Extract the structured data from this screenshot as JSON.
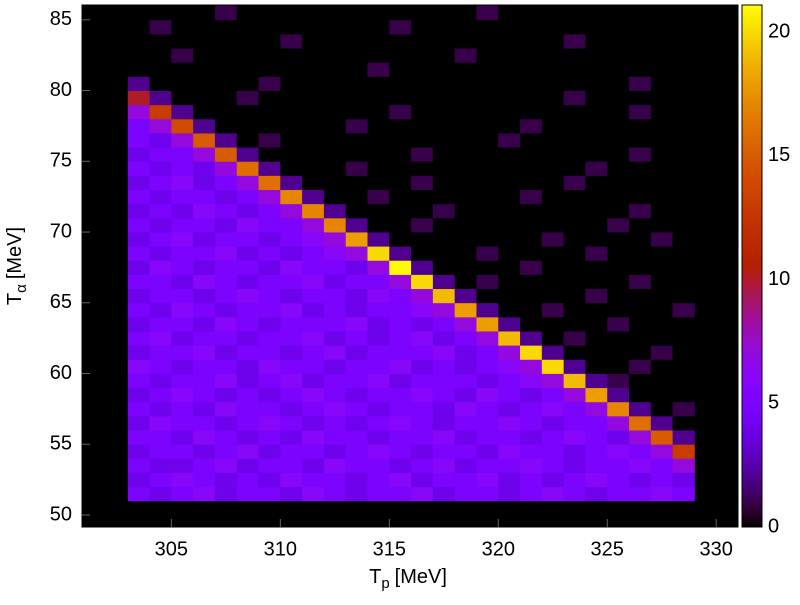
{
  "chart_data": {
    "type": "heatmap",
    "colormap": "gnuplot",
    "xlabel": {
      "symbol": "T",
      "subscript": "p",
      "unit": "[MeV]"
    },
    "ylabel": {
      "symbol": "T",
      "subscript": "α",
      "unit": "[MeV]"
    },
    "xlim": [
      300.9,
      331.0
    ],
    "ylim": [
      49.15,
      86.05
    ],
    "zlim": [
      0,
      21.1
    ],
    "xticks": [
      305,
      310,
      315,
      320,
      325,
      330
    ],
    "yticks": [
      50,
      55,
      60,
      65,
      70,
      75,
      80,
      85
    ],
    "zticks": [
      0,
      5,
      10,
      15,
      20
    ],
    "x_bins": [
      303,
      304,
      305,
      306,
      307,
      308,
      309,
      310,
      311,
      312,
      313,
      314,
      315,
      316,
      317,
      318,
      319,
      320,
      321,
      322,
      323,
      324,
      325,
      326,
      327,
      328,
      329
    ],
    "y_bins": [
      51,
      52,
      53,
      54,
      55,
      56,
      57,
      58,
      59,
      60,
      61,
      62,
      63,
      64,
      65,
      66,
      67,
      68,
      69,
      70,
      71,
      72,
      73,
      74,
      75,
      76,
      77,
      78,
      79,
      80,
      81,
      82,
      83,
      84,
      85,
      86
    ],
    "z": [
      [
        5,
        4,
        5,
        6,
        4,
        5,
        5,
        4,
        6,
        5,
        4,
        5,
        5,
        6,
        4,
        5,
        5,
        4,
        5,
        6,
        5,
        4,
        5,
        5,
        6,
        5
      ],
      [
        4,
        5,
        6,
        5,
        4,
        5,
        4,
        6,
        5,
        5,
        4,
        5,
        6,
        4,
        5,
        5,
        6,
        4,
        5,
        4,
        5,
        6,
        5,
        4,
        5,
        4
      ],
      [
        5,
        4,
        4,
        5,
        6,
        4,
        5,
        5,
        4,
        6,
        5,
        5,
        4,
        5,
        6,
        4,
        5,
        5,
        6,
        5,
        4,
        5,
        5,
        6,
        5,
        7
      ],
      [
        4,
        5,
        5,
        4,
        5,
        6,
        4,
        5,
        5,
        4,
        5,
        6,
        5,
        4,
        5,
        5,
        4,
        6,
        5,
        5,
        4,
        5,
        6,
        5,
        7,
        13
      ],
      [
        5,
        5,
        4,
        6,
        5,
        4,
        5,
        4,
        6,
        5,
        5,
        4,
        5,
        5,
        6,
        4,
        5,
        5,
        4,
        5,
        6,
        5,
        4,
        7,
        15,
        2
      ],
      [
        4,
        6,
        5,
        5,
        4,
        5,
        6,
        5,
        4,
        5,
        4,
        5,
        6,
        5,
        4,
        5,
        5,
        6,
        5,
        4,
        5,
        5,
        7,
        16,
        2,
        0
      ],
      [
        5,
        4,
        5,
        4,
        6,
        5,
        5,
        4,
        5,
        6,
        5,
        4,
        5,
        5,
        4,
        6,
        5,
        4,
        5,
        6,
        5,
        7,
        17,
        2,
        0,
        1
      ],
      [
        4,
        5,
        6,
        5,
        4,
        5,
        4,
        5,
        6,
        5,
        4,
        5,
        5,
        6,
        5,
        4,
        6,
        5,
        4,
        5,
        7,
        18,
        2,
        0,
        0,
        0
      ],
      [
        5,
        4,
        5,
        5,
        6,
        4,
        5,
        6,
        4,
        5,
        5,
        6,
        4,
        5,
        5,
        5,
        4,
        5,
        6,
        7,
        19,
        2,
        1,
        0,
        0,
        0
      ],
      [
        6,
        5,
        4,
        5,
        5,
        4,
        6,
        5,
        5,
        4,
        5,
        5,
        6,
        4,
        5,
        4,
        5,
        6,
        7,
        20,
        2,
        0,
        0,
        1,
        0,
        0
      ],
      [
        4,
        5,
        5,
        6,
        4,
        5,
        5,
        4,
        5,
        6,
        4,
        5,
        5,
        5,
        6,
        4,
        5,
        7,
        20,
        2,
        0,
        0,
        0,
        0,
        1,
        0
      ],
      [
        5,
        6,
        4,
        5,
        5,
        4,
        5,
        5,
        6,
        4,
        5,
        4,
        5,
        6,
        4,
        5,
        7,
        19,
        2,
        0,
        1,
        0,
        0,
        0,
        0,
        0
      ],
      [
        4,
        5,
        5,
        4,
        6,
        5,
        4,
        5,
        5,
        5,
        6,
        4,
        5,
        4,
        5,
        7,
        18,
        2,
        0,
        0,
        0,
        0,
        1,
        0,
        0,
        0
      ],
      [
        5,
        4,
        6,
        5,
        4,
        5,
        5,
        6,
        4,
        5,
        4,
        5,
        5,
        6,
        7,
        18,
        2,
        0,
        0,
        1,
        0,
        0,
        0,
        0,
        0,
        1
      ],
      [
        4,
        5,
        5,
        4,
        5,
        6,
        5,
        4,
        5,
        5,
        4,
        6,
        5,
        7,
        19,
        2,
        0,
        0,
        0,
        0,
        0,
        1,
        0,
        0,
        0,
        0
      ],
      [
        5,
        5,
        4,
        6,
        5,
        4,
        5,
        5,
        6,
        4,
        5,
        5,
        7,
        20,
        2,
        0,
        1,
        0,
        0,
        0,
        0,
        0,
        0,
        1,
        0,
        0
      ],
      [
        4,
        6,
        5,
        4,
        5,
        5,
        4,
        6,
        5,
        5,
        4,
        7,
        21,
        2,
        0,
        0,
        0,
        0,
        1,
        0,
        0,
        0,
        0,
        0,
        0,
        0
      ],
      [
        5,
        4,
        5,
        5,
        6,
        4,
        5,
        4,
        5,
        6,
        7,
        20,
        2,
        0,
        0,
        0,
        1,
        0,
        0,
        0,
        0,
        1,
        0,
        0,
        0,
        0
      ],
      [
        4,
        5,
        6,
        4,
        5,
        5,
        4,
        5,
        6,
        7,
        18,
        2,
        0,
        0,
        0,
        0,
        0,
        0,
        0,
        1,
        0,
        0,
        0,
        0,
        1,
        0
      ],
      [
        5,
        4,
        5,
        5,
        4,
        6,
        5,
        5,
        7,
        17,
        2,
        0,
        0,
        1,
        0,
        0,
        0,
        0,
        0,
        0,
        0,
        0,
        1,
        0,
        0,
        0
      ],
      [
        4,
        5,
        4,
        6,
        5,
        4,
        5,
        7,
        17,
        2,
        0,
        0,
        0,
        0,
        1,
        0,
        0,
        0,
        0,
        0,
        0,
        0,
        0,
        1,
        0,
        0
      ],
      [
        5,
        4,
        5,
        5,
        4,
        5,
        7,
        17,
        2,
        0,
        0,
        1,
        0,
        0,
        0,
        0,
        0,
        0,
        1,
        0,
        0,
        0,
        0,
        0,
        0,
        0
      ],
      [
        4,
        5,
        6,
        4,
        5,
        7,
        16,
        2,
        0,
        0,
        0,
        0,
        0,
        1,
        0,
        0,
        0,
        0,
        0,
        0,
        1,
        0,
        0,
        0,
        0,
        0
      ],
      [
        5,
        4,
        5,
        4,
        7,
        16,
        2,
        0,
        0,
        0,
        1,
        0,
        0,
        0,
        0,
        0,
        0,
        0,
        0,
        0,
        0,
        1,
        0,
        0,
        0,
        0
      ],
      [
        4,
        5,
        5,
        7,
        15,
        2,
        0,
        0,
        0,
        0,
        0,
        0,
        0,
        1,
        0,
        0,
        0,
        0,
        0,
        0,
        0,
        0,
        0,
        1,
        0,
        0
      ],
      [
        5,
        4,
        7,
        15,
        2,
        0,
        1,
        0,
        0,
        0,
        0,
        0,
        0,
        0,
        0,
        0,
        0,
        1,
        0,
        0,
        0,
        0,
        0,
        0,
        0,
        0
      ],
      [
        5,
        7,
        14,
        2,
        0,
        0,
        0,
        0,
        0,
        0,
        1,
        0,
        0,
        0,
        0,
        0,
        0,
        0,
        1,
        0,
        0,
        0,
        0,
        0,
        0,
        0
      ],
      [
        7,
        13,
        2,
        0,
        0,
        0,
        0,
        0,
        0,
        0,
        0,
        0,
        1,
        0,
        0,
        0,
        0,
        0,
        0,
        0,
        0,
        0,
        0,
        1,
        0,
        0
      ],
      [
        10,
        2,
        0,
        0,
        0,
        1,
        0,
        0,
        0,
        0,
        0,
        0,
        0,
        0,
        0,
        0,
        0,
        0,
        0,
        0,
        1,
        0,
        0,
        0,
        0,
        0
      ],
      [
        2,
        0,
        0,
        0,
        0,
        0,
        1,
        0,
        0,
        0,
        0,
        0,
        0,
        0,
        0,
        0,
        0,
        0,
        0,
        0,
        0,
        0,
        0,
        1,
        0,
        0
      ],
      [
        0,
        0,
        0,
        0,
        0,
        0,
        0,
        0,
        0,
        0,
        0,
        1,
        0,
        0,
        0,
        0,
        0,
        0,
        0,
        0,
        0,
        0,
        0,
        0,
        0,
        0
      ],
      [
        0,
        0,
        1,
        0,
        0,
        0,
        0,
        0,
        0,
        0,
        0,
        0,
        0,
        0,
        0,
        1,
        0,
        0,
        0,
        0,
        0,
        0,
        0,
        0,
        0,
        0
      ],
      [
        0,
        0,
        0,
        0,
        0,
        0,
        0,
        1,
        0,
        0,
        0,
        0,
        0,
        0,
        0,
        0,
        0,
        0,
        0,
        0,
        1,
        0,
        0,
        0,
        0,
        0
      ],
      [
        0,
        1,
        0,
        0,
        0,
        0,
        0,
        0,
        0,
        0,
        0,
        0,
        1,
        0,
        0,
        0,
        0,
        0,
        0,
        0,
        0,
        0,
        0,
        0,
        0,
        0
      ],
      [
        0,
        0,
        0,
        0,
        1,
        0,
        0,
        0,
        0,
        0,
        0,
        0,
        0,
        0,
        0,
        0,
        1,
        0,
        0,
        0,
        0,
        0,
        0,
        0,
        0,
        0
      ]
    ]
  }
}
